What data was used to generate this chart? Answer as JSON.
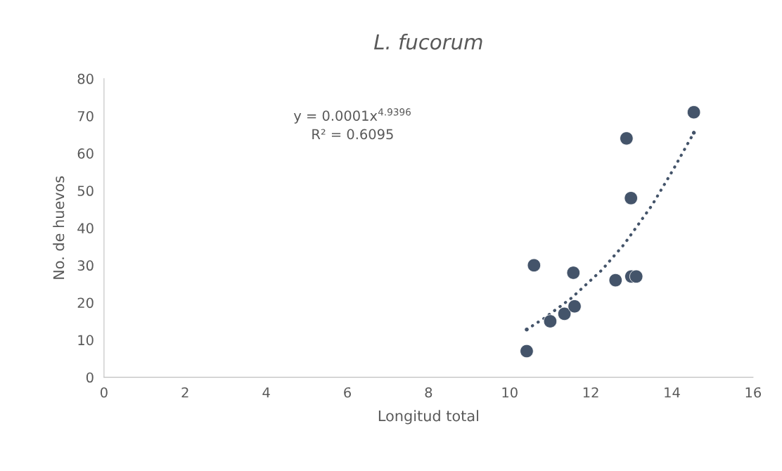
{
  "chart_data": {
    "type": "scatter",
    "title": "L. fucorum",
    "xlabel": "Longitud total",
    "ylabel": "No. de huevos",
    "annotations": [
      "y = 0.0001x$^{4.9396}$",
      "R² = 0.6095"
    ],
    "series": [
      {
        "color": "#44546a",
        "marker": "circle",
        "x": [
          10.42,
          10.6,
          11.0,
          11.35,
          11.57,
          11.6,
          12.61,
          12.88,
          12.99,
          13.0,
          13.12,
          14.54
        ],
        "values": [
          7,
          30,
          15,
          17,
          28,
          19,
          26,
          64,
          48,
          27,
          27,
          71
        ]
      },
      {
        "type": "line",
        "color": "#44546a",
        "line_style": "dotted",
        "marker": "none",
        "x": [
          10.42,
          10.85,
          11.52,
          12.27,
          12.82,
          13.51,
          14.03,
          14.54
        ],
        "values": [
          12.8,
          15.8,
          21.2,
          28.7,
          35.6,
          46.1,
          55.6,
          65.5
        ]
      }
    ],
    "xlim": [
      0,
      16
    ],
    "xticks": [
      0,
      2,
      4,
      6,
      8,
      10,
      12,
      14,
      16
    ],
    "ylim": [
      0,
      80
    ],
    "yticks": [
      0,
      10,
      20,
      30,
      40,
      50,
      60,
      70,
      80
    ],
    "grid": false,
    "legend": false
  }
}
